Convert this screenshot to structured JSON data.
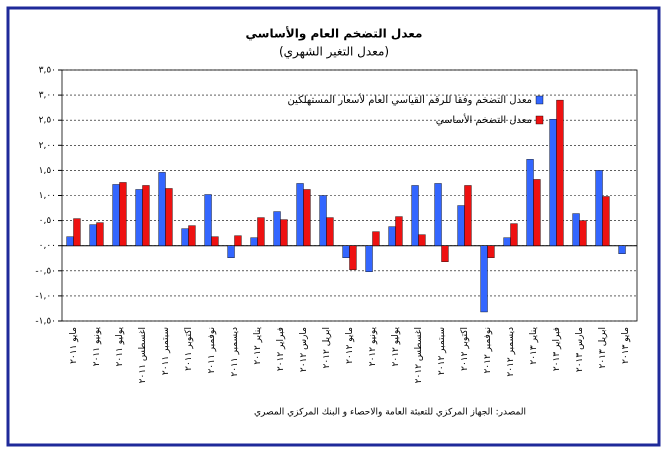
{
  "chart_data": {
    "type": "bar",
    "title": "معدل التضخم العام والأساسي",
    "subtitle": "(معدل التغير الشهري)",
    "source": "المصدر: الجهاز المركزي للتعبئة العامة والاحصاء و البنك المركزي المصري",
    "categories": [
      "مايو ٢٠١١",
      "يونيو ٢٠١١",
      "يوليو ٢٠١١",
      "اغسطس ٢٠١١",
      "سبتمبر ٢٠١١",
      "اكتوبر ٢٠١١",
      "نوفمبر ٢٠١١",
      "ديسمبر ٢٠١١",
      "يناير ٢٠١٢",
      "فبراير ٢٠١٢",
      "مارس ٢٠١٢",
      "ابريل ٢٠١٢",
      "مايو ٢٠١٢",
      "يونيو ٢٠١٢",
      "يوليو ٢٠١٢",
      "اغسطس ٢٠١٢",
      "سبتمبر ٢٠١٢",
      "اكتوبر ٢٠١٢",
      "نوفمبر ٢٠١٢",
      "ديسمبر ٢٠١٢",
      "يناير ٢٠١٣",
      "فبراير ٢٠١٣",
      "مارس ٢٠١٣",
      "ابريل ٢٠١٣",
      "مايو ٢٠١٣"
    ],
    "series": [
      {
        "name": "معدل التضخم وفقا للرقم القياسي العام لأسعار المستهلكين",
        "color": "#3366ff",
        "values": [
          0.18,
          0.42,
          1.22,
          1.12,
          1.46,
          0.34,
          1.02,
          -0.24,
          0.16,
          0.68,
          1.24,
          1.0,
          -0.24,
          -0.52,
          0.38,
          1.2,
          1.24,
          0.8,
          -1.32,
          0.16,
          1.72,
          2.52,
          0.64,
          1.5,
          -0.16
        ]
      },
      {
        "name": "معدل التضخم الأساسي",
        "color": "#ee1111",
        "values": [
          0.54,
          0.46,
          1.26,
          1.2,
          1.14,
          0.4,
          0.18,
          0.2,
          0.56,
          0.52,
          1.12,
          0.56,
          -0.48,
          0.28,
          0.58,
          0.22,
          -0.32,
          1.2,
          -0.24,
          0.44,
          1.32,
          2.9,
          0.5,
          0.98,
          null
        ]
      }
    ],
    "ylim": [
      -1.5,
      3.5
    ],
    "yticks": [
      {
        "value": -1.5,
        "label": "-١,٥٠"
      },
      {
        "value": -1,
        "label": "-١,٠٠"
      },
      {
        "value": -0.5,
        "label": "-٠,٥٠"
      },
      {
        "value": 0,
        "label": "٠,٠٠"
      },
      {
        "value": 0.5,
        "label": "٠,٥٠"
      },
      {
        "value": 1,
        "label": "١,٠٠"
      },
      {
        "value": 1.5,
        "label": "١,٥٠"
      },
      {
        "value": 2,
        "label": "٢,٠٠"
      },
      {
        "value": 2.5,
        "label": "٢,٥٠"
      },
      {
        "value": 3,
        "label": "٣,٠٠"
      },
      {
        "value": 3.5,
        "label": "٣,٥٠"
      }
    ],
    "grid": true
  }
}
